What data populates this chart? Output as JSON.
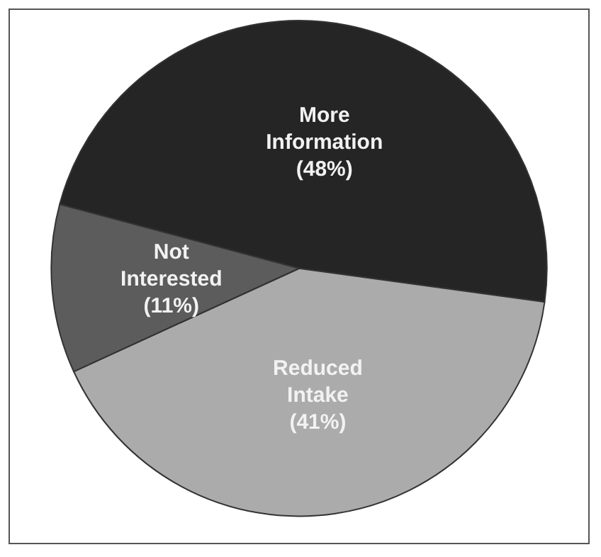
{
  "chart_data": {
    "type": "pie",
    "categories": [
      "More Information",
      "Reduced Intake",
      "Not Interested"
    ],
    "values": [
      48,
      41,
      11
    ],
    "colors": [
      "#252525",
      "#ababab",
      "#5c5c5c"
    ],
    "value_labels": [
      "(48%)",
      "(41%)",
      "(11%)"
    ]
  }
}
